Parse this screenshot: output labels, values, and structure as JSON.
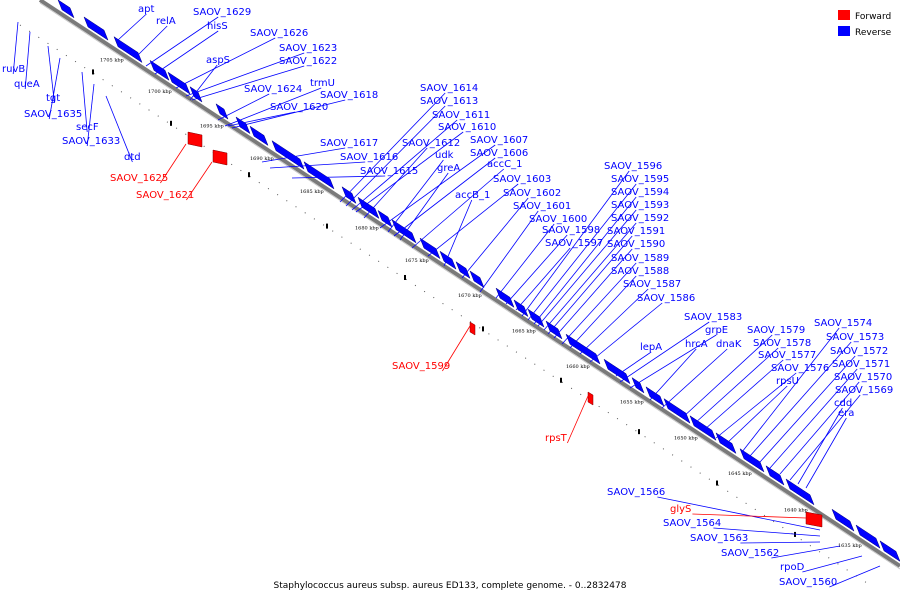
{
  "caption": "Staphylococcus aureus subsp. aureus ED133, complete genome. - 0..2832478",
  "legend": [
    {
      "label": "Forward",
      "color": "#ff0000"
    },
    {
      "label": "Reverse",
      "color": "#0000ff"
    }
  ],
  "colors": {
    "forward": "#ff0000",
    "reverse": "#0000ff",
    "axis": "#808080"
  },
  "ticks": [
    "1705 kbp",
    "1700 kbp",
    "1695 kbp",
    "1690 kbp",
    "1685 kbp",
    "1680 kbp",
    "1675 kbp",
    "1670 kbp",
    "1665 kbp",
    "1660 kbp",
    "1655 kbp",
    "1650 kbp",
    "1645 kbp",
    "1640 kbp",
    "1635 kbp"
  ],
  "genes_reverse": [
    "apt",
    "relA",
    "SAOV_1629",
    "hisS",
    "SAOV_1626",
    "SAOV_1623",
    "SAOV_1622",
    "aspS",
    "trmU",
    "SAOV_1624",
    "SAOV_1618",
    "SAOV_1620",
    "SAOV_1614",
    "SAOV_1613",
    "SAOV_1611",
    "SAOV_1610",
    "SAOV_1617",
    "SAOV_1612",
    "SAOV_1607",
    "SAOV_1616",
    "udk",
    "SAOV_1606",
    "SAOV_1615",
    "greA",
    "accC_1",
    "SAOV_1603",
    "accB_1",
    "SAOV_1602",
    "SAOV_1601",
    "SAOV_1600",
    "SAOV_1598",
    "SAOV_1597",
    "SAOV_1596",
    "SAOV_1595",
    "SAOV_1594",
    "SAOV_1593",
    "SAOV_1592",
    "SAOV_1591",
    "SAOV_1590",
    "SAOV_1589",
    "SAOV_1588",
    "SAOV_1587",
    "SAOV_1586",
    "SAOV_1583",
    "grpE",
    "lepA",
    "hrcA",
    "dnaK",
    "SAOV_1579",
    "SAOV_1578",
    "SAOV_1577",
    "SAOV_1576",
    "rpsU",
    "SAOV_1574",
    "SAOV_1573",
    "SAOV_1572",
    "SAOV_1571",
    "SAOV_1570",
    "SAOV_1569",
    "cdd",
    "era",
    "ruvB",
    "queA",
    "tgt",
    "SAOV_1635",
    "secF",
    "SAOV_1633",
    "dtd",
    "SAOV_1566",
    "SAOV_1564",
    "SAOV_1563",
    "SAOV_1562",
    "rpoD",
    "SAOV_1560"
  ],
  "genes_forward": [
    "SAOV_1625",
    "SAOV_1621",
    "SAOV_1599",
    "rpsT",
    "glyS"
  ]
}
